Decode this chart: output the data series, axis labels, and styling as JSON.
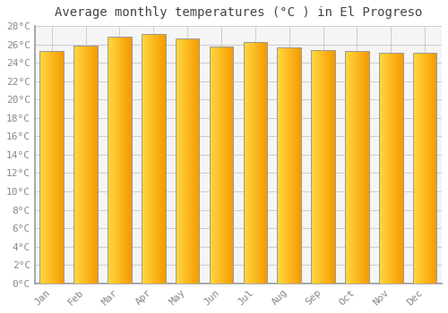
{
  "title": "Average monthly temperatures (°C ) in El Progreso",
  "months": [
    "Jan",
    "Feb",
    "Mar",
    "Apr",
    "May",
    "Jun",
    "Jul",
    "Aug",
    "Sep",
    "Oct",
    "Nov",
    "Dec"
  ],
  "values": [
    25.3,
    25.9,
    26.8,
    27.1,
    26.6,
    25.8,
    26.3,
    25.7,
    25.4,
    25.3,
    25.1,
    25.1
  ],
  "bar_color_left": "#FFD840",
  "bar_color_right": "#F59B00",
  "bar_edge_color": "#999999",
  "background_color": "#FFFFFF",
  "plot_bg_color": "#F5F5F5",
  "grid_color": "#CCCCCC",
  "ylim_max": 28,
  "ytick_step": 2,
  "title_fontsize": 10,
  "tick_fontsize": 8,
  "font_family": "monospace",
  "title_color": "#444444",
  "tick_color": "#888888"
}
